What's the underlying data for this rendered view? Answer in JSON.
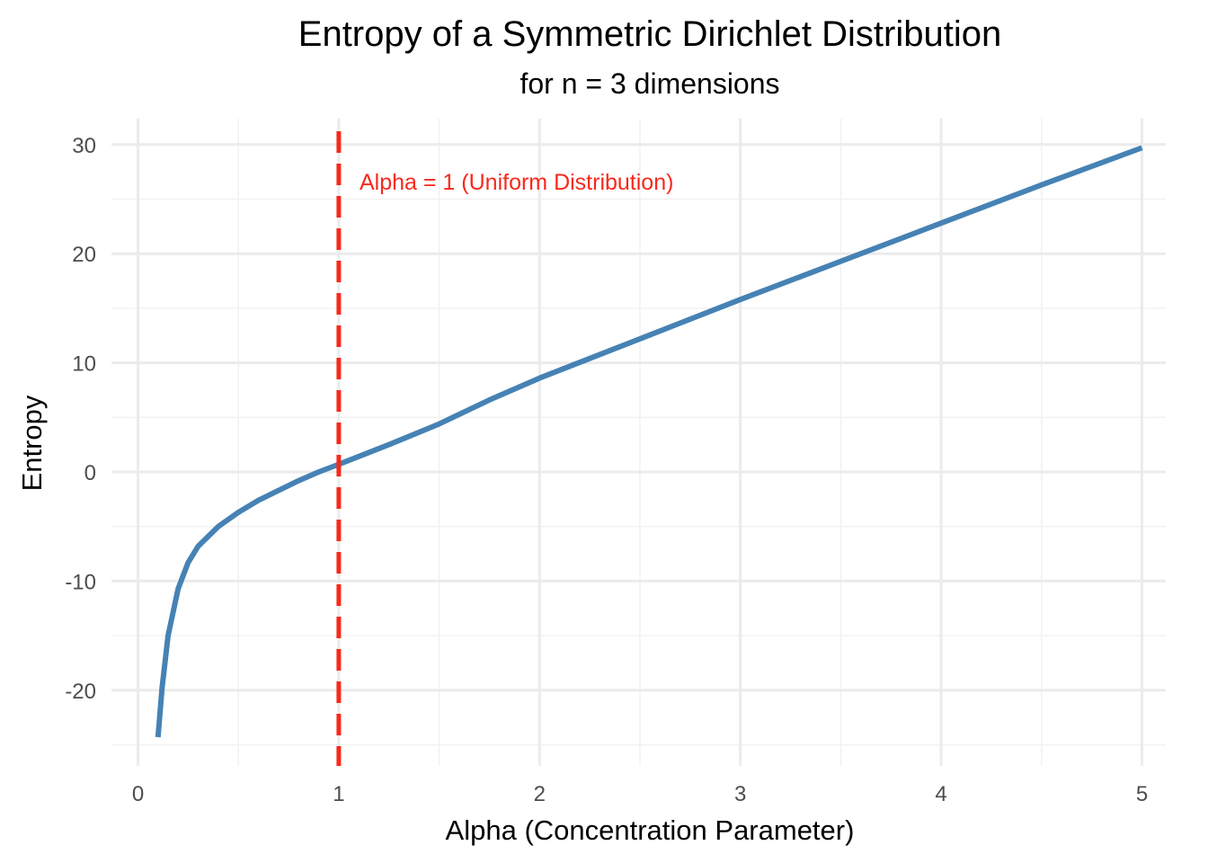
{
  "chart_data": {
    "type": "line",
    "title": "Entropy of a Symmetric Dirichlet Distribution",
    "subtitle": "for n = 3 dimensions",
    "xlabel": "Alpha (Concentration Parameter)",
    "ylabel": "Entropy",
    "xlim": [
      0,
      5
    ],
    "ylim": [
      -25,
      30
    ],
    "x_ticks": [
      "0",
      "1",
      "2",
      "3",
      "4",
      "5"
    ],
    "y_ticks": [
      "-20",
      "-10",
      "0",
      "10",
      "20",
      "30"
    ],
    "grid": true,
    "series": [
      {
        "name": "Entropy",
        "color": "#4682B4",
        "points": [
          [
            0.1,
            -24.3
          ],
          [
            0.12,
            -19.8
          ],
          [
            0.15,
            -15.0
          ],
          [
            0.2,
            -10.7
          ],
          [
            0.25,
            -8.3
          ],
          [
            0.3,
            -6.8
          ],
          [
            0.4,
            -5.0
          ],
          [
            0.5,
            -3.7
          ],
          [
            0.6,
            -2.6
          ],
          [
            0.7,
            -1.7
          ],
          [
            0.8,
            -0.8
          ],
          [
            0.9,
            0.0
          ],
          [
            1.0,
            0.7
          ],
          [
            1.25,
            2.5
          ],
          [
            1.5,
            4.4
          ],
          [
            1.75,
            6.6
          ],
          [
            2.0,
            8.6
          ],
          [
            2.5,
            12.2
          ],
          [
            3.0,
            15.8
          ],
          [
            3.5,
            19.3
          ],
          [
            4.0,
            22.8
          ],
          [
            4.5,
            26.3
          ],
          [
            5.0,
            29.7
          ]
        ]
      }
    ],
    "reference_line": {
      "x": 1,
      "style": "dashed",
      "color": "#F8291C",
      "label": "Alpha = 1 (Uniform Distribution)"
    }
  }
}
